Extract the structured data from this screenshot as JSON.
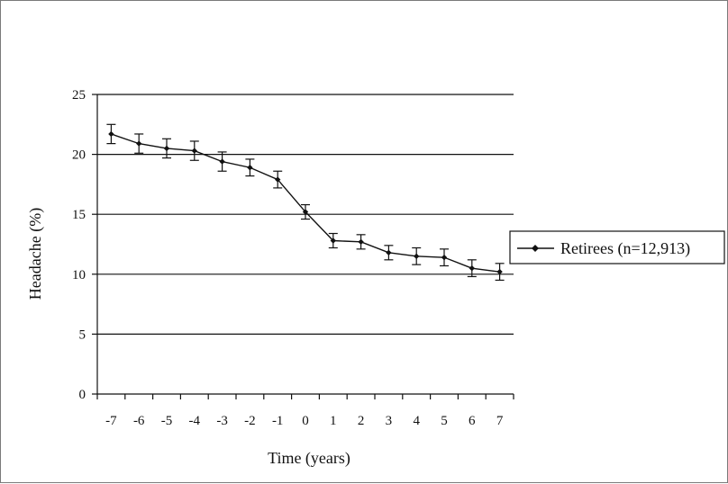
{
  "chart_data": {
    "type": "line",
    "xlabel": "Time (years)",
    "ylabel": "Headache (%)",
    "x": [
      -7,
      -6,
      -5,
      -4,
      -3,
      -2,
      -1,
      0,
      1,
      2,
      3,
      4,
      5,
      6,
      7
    ],
    "x_tick_labels": [
      "-7",
      "-6",
      "-5",
      "-4",
      "-3",
      "-2",
      "-1",
      "0",
      "1",
      "2",
      "3",
      "4",
      "5",
      "6",
      "7"
    ],
    "y_tick_labels": [
      "0",
      "5",
      "10",
      "15",
      "20",
      "25"
    ],
    "ylim": [
      0,
      25
    ],
    "grid": true,
    "legend_position": "right",
    "series": [
      {
        "name": "Retirees (n=12,913)",
        "values": [
          21.7,
          20.9,
          20.5,
          20.3,
          19.4,
          18.9,
          17.9,
          15.2,
          12.8,
          12.7,
          11.8,
          11.5,
          11.4,
          10.5,
          10.2
        ],
        "errors": [
          0.8,
          0.8,
          0.8,
          0.8,
          0.8,
          0.7,
          0.7,
          0.6,
          0.6,
          0.6,
          0.6,
          0.7,
          0.7,
          0.7,
          0.7
        ],
        "color": "#111111"
      }
    ]
  }
}
